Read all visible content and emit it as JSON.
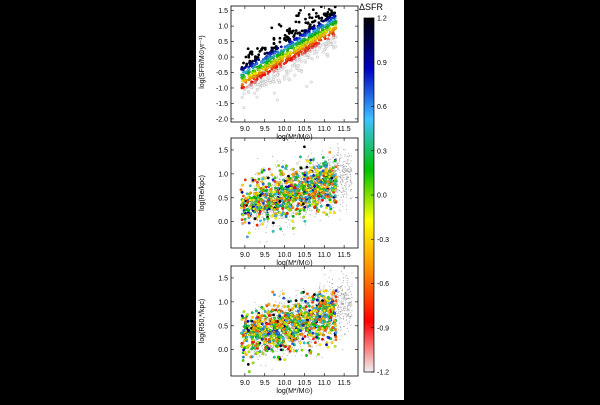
{
  "colorbar": {
    "label": "ΔSFR",
    "ticks": [
      "1.2",
      "0.9",
      "0.6",
      "0.3",
      "0.0",
      "-0.3",
      "-0.6",
      "-0.9",
      "-1.2"
    ],
    "range": [
      -1.2,
      1.2
    ],
    "colors": [
      "#f0f0f0",
      "#ff0000",
      "#ff8c00",
      "#ffff00",
      "#00c000",
      "#40c0ff",
      "#0000c0",
      "#000000"
    ]
  },
  "chart_data": [
    {
      "type": "scatter",
      "ylabel": "log(SFR/M⊙yr⁻¹)",
      "xlabel": "log(M*/M⊙)",
      "xlim": [
        8.65,
        11.85
      ],
      "ylim": [
        -2.1,
        1.65
      ],
      "xticks": [
        "9.0",
        "9.5",
        "10.0",
        "10.5",
        "11.0",
        "11.5"
      ],
      "yticks": [
        "1.5",
        "1.0",
        "0.5",
        "0.0",
        "-0.5",
        "-1.0",
        "-1.5",
        "-2.0"
      ],
      "relation": {
        "slope": 0.75,
        "intercept_at_10": 0.1,
        "scatter": 0.35
      },
      "x_range_points": [
        8.9,
        11.3
      ],
      "grey_background": false,
      "n_points": 900
    },
    {
      "type": "scatter",
      "ylabel": "log(Re/kpc)",
      "xlabel": "log(M*/M⊙)",
      "xlim": [
        8.65,
        11.85
      ],
      "ylim": [
        -0.55,
        1.75
      ],
      "xticks": [
        "9.0",
        "9.5",
        "10.0",
        "10.5",
        "11.0",
        "11.5"
      ],
      "yticks": [
        "1.5",
        "1.0",
        "0.5",
        "0.0"
      ],
      "relation": {
        "slope": 0.22,
        "intercept_at_10": 0.55,
        "scatter": 0.25
      },
      "x_range_points": [
        8.9,
        11.3
      ],
      "grey_background": true,
      "n_points": 900
    },
    {
      "type": "scatter",
      "ylabel": "log(R50,*/kpc)",
      "xlabel": "log(M*/M⊙)",
      "xlim": [
        8.65,
        11.85
      ],
      "ylim": [
        -0.55,
        1.75
      ],
      "xticks": [
        "9.0",
        "9.5",
        "10.0",
        "10.5",
        "11.0",
        "11.5"
      ],
      "yticks": [
        "1.5",
        "1.0",
        "0.5",
        "0.0"
      ],
      "relation": {
        "slope": 0.2,
        "intercept_at_10": 0.5,
        "scatter": 0.25
      },
      "x_range_points": [
        8.9,
        11.3
      ],
      "grey_background": true,
      "n_points": 900
    }
  ]
}
